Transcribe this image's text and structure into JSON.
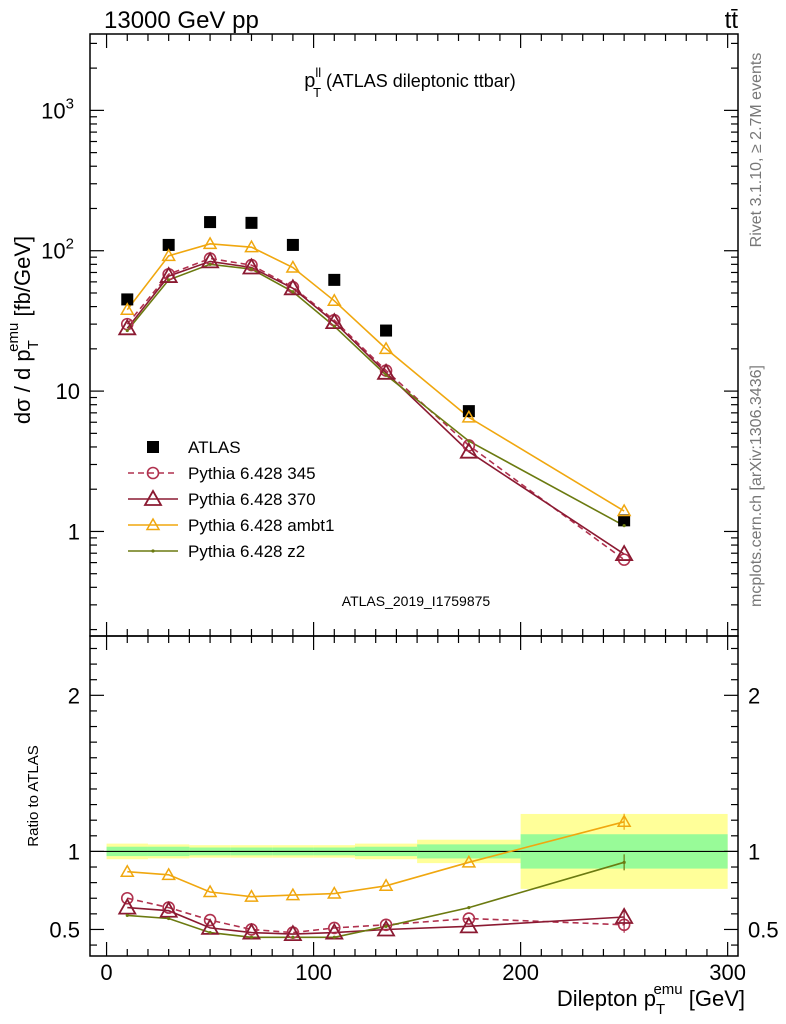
{
  "header": {
    "collision": "13000 GeV pp",
    "process": "tt̄"
  },
  "side_notes": {
    "rivet": "Rivet 3.1.10, ≥ 2.7M events",
    "mcplots": "mcplots.cern.ch [arXiv:1306.3436]"
  },
  "colors": {
    "atlas": "#000000",
    "p345": "#b0314e",
    "p370": "#8b1a32",
    "ambt1": "#f0a70f",
    "z2": "#6b7a10",
    "band_inner": "#98fb98",
    "band_outer": "#ffff99"
  },
  "chart_data": [
    {
      "type": "scatter",
      "title_main": "p",
      "title_sup": "ll",
      "title_sub": "T",
      "title_rest": " (ATLAS dileptonic ttbar)",
      "analysis_id": "ATLAS_2019_I1759875",
      "ylabel_main": "dσ / d p",
      "ylabel_sub": "T",
      "ylabel_sup": "emu",
      "ylabel_rest": " [fb/GeV]",
      "yscale": "log",
      "xlim": [
        -8,
        305
      ],
      "ylim": [
        0.18,
        3500
      ],
      "yticks": [
        {
          "value": 1,
          "base": "1",
          "exp": ""
        },
        {
          "value": 10,
          "base": "10",
          "exp": ""
        },
        {
          "value": 100,
          "base": "10",
          "exp": "2"
        },
        {
          "value": 1000,
          "base": "10",
          "exp": "3"
        }
      ],
      "legend_position": "lower-left",
      "x": [
        10,
        30,
        50,
        70,
        90,
        110,
        135,
        175,
        250
      ],
      "series": [
        {
          "name": "ATLAS",
          "key": "atlas",
          "values": [
            45,
            110,
            160,
            158,
            110,
            62,
            27,
            7.2,
            1.2
          ]
        },
        {
          "name": "Pythia 6.428 345",
          "key": "p345",
          "values": [
            30,
            68,
            88,
            79,
            55,
            32,
            14,
            4.1,
            0.63
          ]
        },
        {
          "name": "Pythia 6.428 370",
          "key": "p370",
          "values": [
            28,
            66,
            84,
            76,
            54,
            31,
            13.5,
            3.7,
            0.69
          ]
        },
        {
          "name": "Pythia 6.428 ambt1",
          "key": "ambt1",
          "values": [
            38,
            92,
            112,
            106,
            76,
            44,
            20,
            6.5,
            1.4
          ]
        },
        {
          "name": "Pythia 6.428 z2",
          "key": "z2",
          "values": [
            27,
            62,
            80,
            74,
            51,
            29,
            13,
            4.4,
            1.1
          ]
        }
      ]
    },
    {
      "type": "line",
      "ylabel": "Ratio to ATLAS",
      "xlabel_main": "Dilepton p",
      "xlabel_sub": "T",
      "xlabel_sup": "emu",
      "xlabel_rest": " [GeV]",
      "xlim": [
        -8,
        305
      ],
      "ylim": [
        0.33,
        2.38
      ],
      "xticks": [
        "0",
        "100",
        "200",
        "300"
      ],
      "yticks": [
        "0.5",
        "1",
        "2"
      ],
      "x": [
        10,
        30,
        50,
        70,
        90,
        110,
        135,
        175,
        250
      ],
      "bands": [
        {
          "x0": 0,
          "x1": 20,
          "inner": 0.03,
          "outer": 0.05
        },
        {
          "x0": 20,
          "x1": 40,
          "inner": 0.03,
          "outer": 0.045
        },
        {
          "x0": 40,
          "x1": 60,
          "inner": 0.025,
          "outer": 0.04
        },
        {
          "x0": 60,
          "x1": 80,
          "inner": 0.025,
          "outer": 0.04
        },
        {
          "x0": 80,
          "x1": 100,
          "inner": 0.025,
          "outer": 0.04
        },
        {
          "x0": 100,
          "x1": 120,
          "inner": 0.025,
          "outer": 0.04
        },
        {
          "x0": 120,
          "x1": 150,
          "inner": 0.03,
          "outer": 0.05
        },
        {
          "x0": 150,
          "x1": 200,
          "inner": 0.045,
          "outer": 0.075
        },
        {
          "x0": 200,
          "x1": 300,
          "inner": 0.11,
          "outer": 0.24
        }
      ],
      "series": [
        {
          "name": "Pythia 6.428 345",
          "key": "p345",
          "values": [
            0.7,
            0.64,
            0.56,
            0.5,
            0.48,
            0.51,
            0.53,
            0.57,
            0.53
          ]
        },
        {
          "name": "Pythia 6.428 370",
          "key": "p370",
          "values": [
            0.64,
            0.62,
            0.51,
            0.48,
            0.47,
            0.48,
            0.5,
            0.52,
            0.58
          ]
        },
        {
          "name": "Pythia 6.428 ambt1",
          "key": "ambt1",
          "values": [
            0.87,
            0.85,
            0.74,
            0.71,
            0.72,
            0.73,
            0.78,
            0.93,
            1.19
          ]
        },
        {
          "name": "Pythia 6.428 z2",
          "key": "z2",
          "values": [
            0.59,
            0.57,
            0.48,
            0.45,
            0.45,
            0.45,
            0.52,
            0.64,
            0.93
          ]
        }
      ]
    }
  ]
}
